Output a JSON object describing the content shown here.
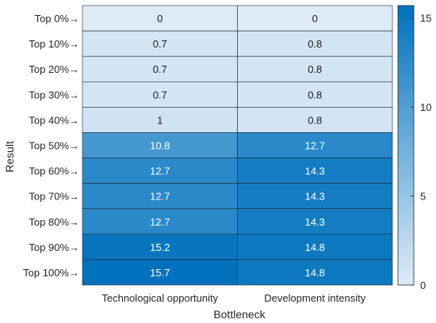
{
  "chart_data": {
    "type": "heatmap",
    "title": "",
    "xlabel": "Bottleneck",
    "ylabel": "Result",
    "columns": [
      "Technological opportunity",
      "Development intensity"
    ],
    "rows": [
      "Top 0%→",
      "Top 10%→",
      "Top 20%→",
      "Top 30%→",
      "Top 40%→",
      "Top 50%→",
      "Top 60%→",
      "Top 70%→",
      "Top 80%→",
      "Top 90%→",
      "Top 100%→"
    ],
    "values": [
      [
        0,
        0
      ],
      [
        0.7,
        0.8
      ],
      [
        0.7,
        0.8
      ],
      [
        0.7,
        0.8
      ],
      [
        1,
        0.8
      ],
      [
        10.8,
        12.7
      ],
      [
        12.7,
        14.3
      ],
      [
        12.7,
        14.3
      ],
      [
        12.7,
        14.3
      ],
      [
        15.2,
        14.8
      ],
      [
        15.7,
        14.8
      ]
    ],
    "cell_labels": [
      [
        "0",
        "0"
      ],
      [
        "0.7",
        "0.8"
      ],
      [
        "0.7",
        "0.8"
      ],
      [
        "0.7",
        "0.8"
      ],
      [
        "1",
        "0.8"
      ],
      [
        "10.8",
        "12.7"
      ],
      [
        "12.7",
        "14.3"
      ],
      [
        "12.7",
        "14.3"
      ],
      [
        "12.7",
        "14.3"
      ],
      [
        "15.2",
        "14.8"
      ],
      [
        "15.7",
        "14.8"
      ]
    ],
    "colorbar": {
      "range": [
        0,
        15.7
      ],
      "ticks": [
        0,
        5,
        10,
        15
      ],
      "tick_labels": [
        "0",
        "5",
        "10",
        "15"
      ],
      "color_low": "#deebf7",
      "color_high": "#0072bd"
    }
  }
}
